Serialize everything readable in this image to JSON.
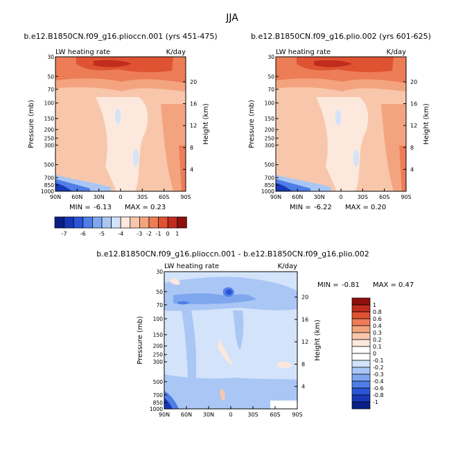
{
  "figure_title": "JJA",
  "colors": {
    "sequential": [
      "#0a1f85",
      "#1838b8",
      "#2a55d6",
      "#4f7ee6",
      "#7ea7ef",
      "#a9c6f5",
      "#d2e3fa",
      "#fce8dc",
      "#f8c7ab",
      "#f3a47f",
      "#ec7d57",
      "#df5232",
      "#c02d1e",
      "#8e0f0c"
    ],
    "diverging": [
      "#0a1f85",
      "#1838b8",
      "#2a55d6",
      "#4f7ee6",
      "#7ea7ef",
      "#a9c6f5",
      "#d2e3fa",
      "#ffffff",
      "#fce8dc",
      "#f8c7ab",
      "#f3a47f",
      "#ec7d57",
      "#df5232",
      "#c02d1e",
      "#8e0f0c"
    ]
  },
  "chart_data": [
    {
      "type": "heatmap",
      "title": "b.e12.B1850CN.f09_g16.plioccn.001 (yrs 451-475)",
      "left_label": "LW heating rate",
      "right_label": "K/day",
      "xlabel": "",
      "ylabel": "Pressure (mb)",
      "ylabel_right": "Height (km)",
      "x_ticks": [
        "90N",
        "60N",
        "30N",
        "0",
        "30S",
        "60S",
        "90S"
      ],
      "y_ticks": [
        "1000",
        "850",
        "700",
        "500",
        "300",
        "250",
        "200",
        "150",
        "100",
        "70",
        "50",
        "30"
      ],
      "y_ticks_right": [
        "4",
        "8",
        "12",
        "16",
        "20"
      ],
      "stats": {
        "min_label": "MIN =",
        "min": "-6.13",
        "max_label": "MAX =",
        "max": "0.23"
      },
      "colorbar": {
        "orientation": "horizontal",
        "labels": [
          "-7",
          "-6",
          "-5",
          "-4",
          "-3",
          "-2",
          "-1",
          "0",
          "1"
        ]
      }
    },
    {
      "type": "heatmap",
      "title": "b.e12.B1850CN.f09_g16.plio.002 (yrs 601-625)",
      "left_label": "LW heating rate",
      "right_label": "K/day",
      "xlabel": "",
      "ylabel": "Pressure (mb)",
      "ylabel_right": "Height (km)",
      "x_ticks": [
        "90N",
        "60N",
        "30N",
        "0",
        "30S",
        "60S",
        "90S"
      ],
      "y_ticks": [
        "1000",
        "850",
        "700",
        "500",
        "300",
        "250",
        "200",
        "150",
        "100",
        "70",
        "50",
        "30"
      ],
      "y_ticks_right": [
        "4",
        "8",
        "12",
        "16",
        "20"
      ],
      "stats": {
        "min_label": "MIN =",
        "min": "-6.22",
        "max_label": "MAX =",
        "max": "0.20"
      }
    },
    {
      "type": "heatmap",
      "title": "b.e12.B1850CN.f09_g16.plioccn.001 - b.e12.B1850CN.f09_g16.plio.002",
      "left_label": "LW heating rate",
      "right_label": "K/day",
      "xlabel": "",
      "ylabel": "Pressure (mb)",
      "ylabel_right": "Height (km)",
      "x_ticks": [
        "90N",
        "60N",
        "30N",
        "0",
        "30S",
        "60S",
        "90S"
      ],
      "y_ticks": [
        "1000",
        "850",
        "700",
        "500",
        "300",
        "250",
        "200",
        "150",
        "100",
        "70",
        "50",
        "30"
      ],
      "y_ticks_right": [
        "4",
        "8",
        "12",
        "16",
        "20"
      ],
      "stats": {
        "min_label": "MIN =",
        "min": "-0.81",
        "max_label": "MAX =",
        "max": "0.47"
      },
      "colorbar": {
        "orientation": "vertical",
        "labels": [
          "1",
          "0.8",
          "0.6",
          "0.4",
          "0.3",
          "0.2",
          "0.1",
          "0",
          "-0.1",
          "-0.2",
          "-0.3",
          "-0.4",
          "-0.6",
          "-0.8",
          "-1"
        ]
      }
    }
  ]
}
